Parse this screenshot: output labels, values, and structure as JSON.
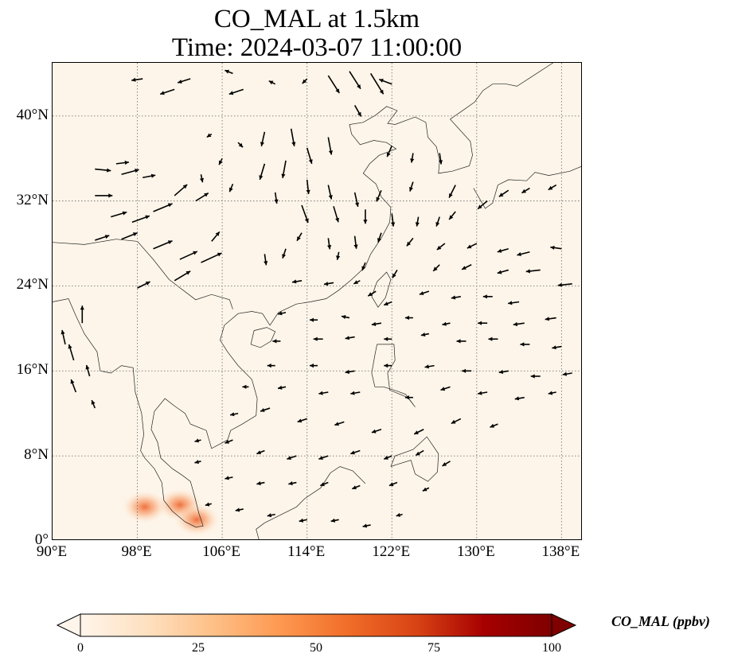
{
  "title_line1": "CO_MAL at 1.5km",
  "title_line2": "Time: 2024-03-07 11:00:00",
  "map": {
    "lon_range": [
      90,
      140
    ],
    "lat_range": [
      0,
      45
    ],
    "lon_ticks": [
      {
        "value": 90,
        "label": "90°E"
      },
      {
        "value": 98,
        "label": "98°E"
      },
      {
        "value": 106,
        "label": "106°E"
      },
      {
        "value": 114,
        "label": "114°E"
      },
      {
        "value": 122,
        "label": "122°E"
      },
      {
        "value": 130,
        "label": "130°E"
      },
      {
        "value": 138,
        "label": "138°E"
      }
    ],
    "lat_ticks": [
      {
        "value": 0,
        "label": "0°"
      },
      {
        "value": 8,
        "label": "8°N"
      },
      {
        "value": 16,
        "label": "16°N"
      },
      {
        "value": 24,
        "label": "24°N"
      },
      {
        "value": 32,
        "label": "32°N"
      },
      {
        "value": 40,
        "label": "40°N"
      }
    ],
    "gridlines": "dotted",
    "background_color": "#fdf5e9",
    "hotspots": [
      {
        "lon": 98.7,
        "lat": 3.2,
        "value": 30
      },
      {
        "lon": 102.0,
        "lat": 3.4,
        "value": 32
      },
      {
        "lon": 103.6,
        "lat": 2.0,
        "value": 18
      }
    ]
  },
  "colorbar": {
    "label": "CO_MAL (ppbv)",
    "ticks": [
      {
        "value": 0,
        "label": "0"
      },
      {
        "value": 25,
        "label": "25"
      },
      {
        "value": 50,
        "label": "50"
      },
      {
        "value": 75,
        "label": "75"
      },
      {
        "value": 100,
        "label": "100"
      }
    ],
    "range": [
      0,
      100
    ],
    "colormap": [
      "#fff5eb",
      "#fee0bf",
      "#fdbf86",
      "#fd974f",
      "#f06c28",
      "#d84315",
      "#a60000",
      "#7f0000"
    ],
    "extend": "both"
  }
}
